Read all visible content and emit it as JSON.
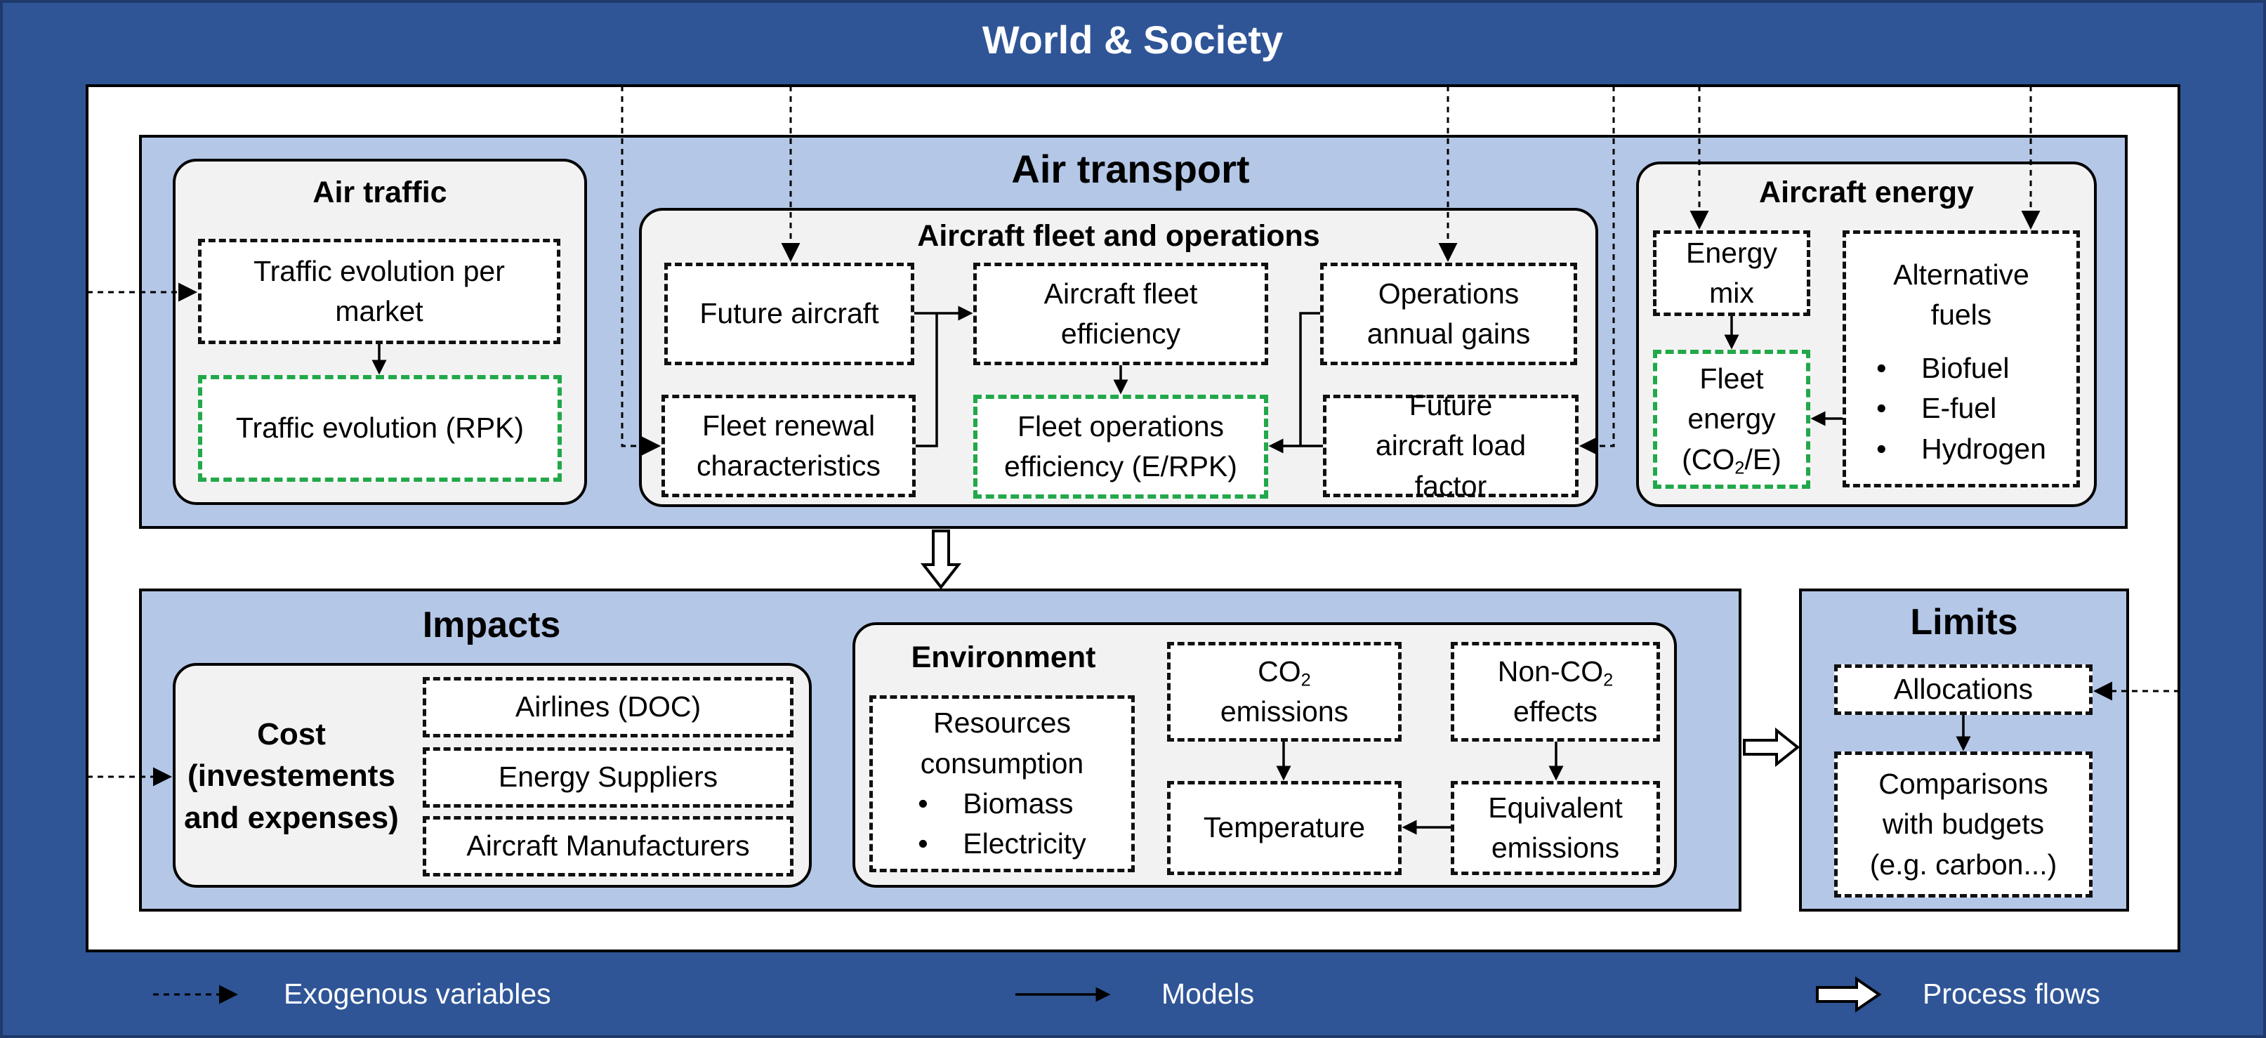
{
  "world": {
    "title": "World & Society"
  },
  "air_transport": {
    "title": "Air transport",
    "air_traffic": {
      "title": "Air traffic",
      "traffic_evolution_per_market": "Traffic evolution per market",
      "traffic_evolution_rpk": "Traffic evolution (RPK)"
    },
    "fleet": {
      "title": "Aircraft fleet and operations",
      "future_aircraft": "Future aircraft",
      "fleet_efficiency": "Aircraft fleet efficiency",
      "operations_gains": "Operations annual gains",
      "fleet_renewal": "Fleet renewal characteristics",
      "fleet_operations_efficiency": "Fleet operations efficiency (E/RPK)",
      "load_factor": "Future aircraft load factor"
    },
    "energy": {
      "title": "Aircraft energy",
      "energy_mix": "Energy mix",
      "fleet_energy_line1": "Fleet",
      "fleet_energy_line2": "energy",
      "fleet_energy_co2_prefix": "(CO",
      "fleet_energy_co2_sub": "2",
      "fleet_energy_co2_suffix": "/E)",
      "alternative_fuels": "Alternative fuels",
      "fuels": [
        "Biofuel",
        "E-fuel",
        "Hydrogen"
      ]
    }
  },
  "impacts": {
    "title": "Impacts",
    "cost": {
      "title": "Cost (investements and expenses)",
      "items": [
        "Airlines (DOC)",
        "Energy Suppliers",
        "Aircraft Manufacturers"
      ]
    },
    "environment": {
      "title": "Environment",
      "resources": "Resources consumption",
      "resources_items": [
        "Biomass",
        "Electricity"
      ],
      "co2_prefix": "CO",
      "co2_sub": "2",
      "co2_suffix": "emissions",
      "nonco2_prefix": "Non-CO",
      "nonco2_sub": "2",
      "nonco2_suffix": "effects",
      "temperature": "Temperature",
      "equivalent_emissions": "Equivalent emissions"
    }
  },
  "limits": {
    "title": "Limits",
    "allocations": "Allocations",
    "comparisons": "Comparisons with budgets (e.g. carbon...)"
  },
  "legend": {
    "exogenous": "Exogenous variables",
    "models": "Models",
    "process": "Process flows"
  },
  "colors": {
    "frame_blue": "#2f5597",
    "region_blue": "#b4c7e7",
    "panel_gray": "#f2f2f2",
    "output_green": "#22a84a"
  }
}
